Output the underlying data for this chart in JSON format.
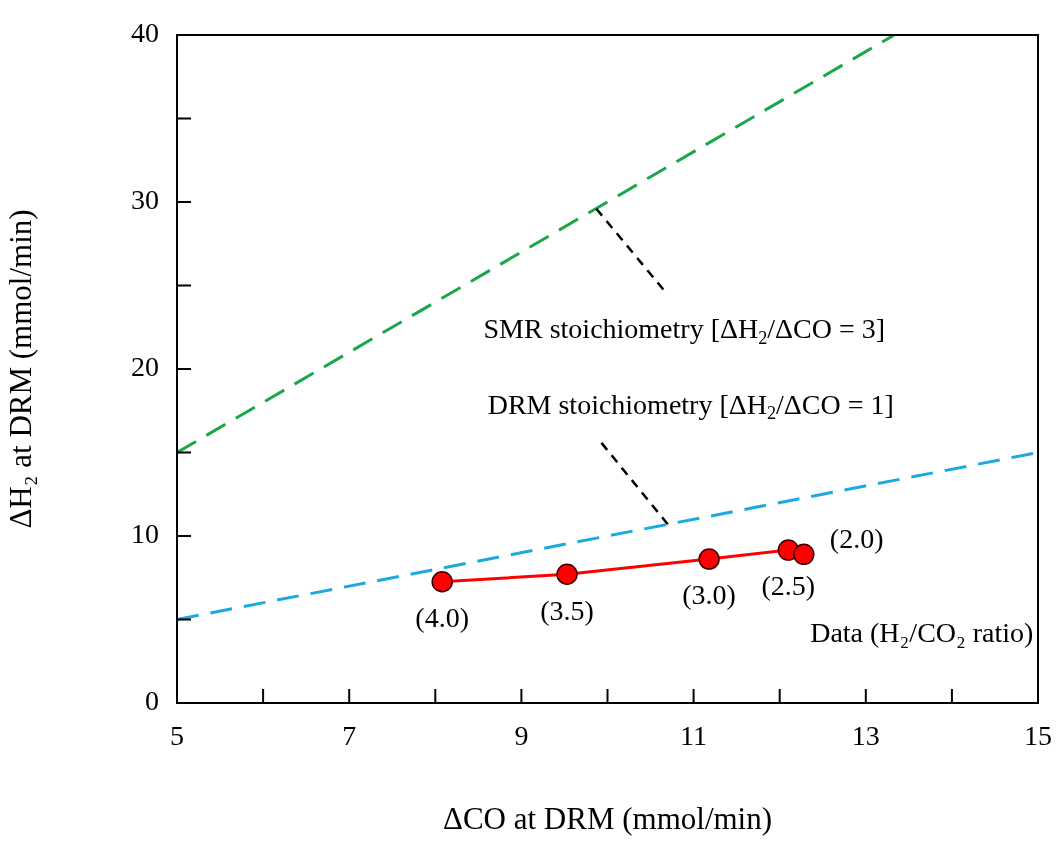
{
  "chart_data": {
    "type": "line",
    "xlabel": "ΔCO at DRM (mmol/min)",
    "ylabel": "ΔH₂ at DRM (mmol/min)",
    "xlim": [
      5,
      15
    ],
    "xticks": [
      5,
      {
        "value": 6,
        "label": null
      },
      7,
      {
        "value": 8,
        "label": null
      },
      9,
      {
        "value": 10,
        "label": null
      },
      11,
      {
        "value": 12,
        "label": null
      },
      13,
      {
        "value": 14,
        "label": null
      },
      15
    ],
    "ylim": [
      0,
      40
    ],
    "yticks": [
      0,
      {
        "value": 5,
        "label": null
      },
      10,
      {
        "value": 15,
        "label": null
      },
      20,
      {
        "value": 25,
        "label": null
      },
      30,
      {
        "value": 35,
        "label": null
      },
      40
    ],
    "grid": false,
    "legend": false,
    "series": [
      {
        "color": "#1aa64a",
        "x": [
          5,
          13.33
        ],
        "values": [
          15,
          40
        ],
        "line_style": "dashed",
        "marker": "none"
      },
      {
        "color": "#1ba9e0",
        "x": [
          5,
          15
        ],
        "values": [
          5,
          15
        ],
        "line_style": "dashed",
        "marker": "none"
      },
      {
        "name": "Data (H₂/CO₂ ratio)",
        "color": "#ff0000",
        "x": [
          8.08,
          9.53,
          11.18,
          12.1,
          12.28
        ],
        "values": [
          7.26,
          7.71,
          8.62,
          9.16,
          8.9
        ],
        "line_style": "solid",
        "marker": "circle"
      }
    ],
    "annotations": [
      {
        "text": "SMR stoichiometry [ΔH$_{2}$/ΔCO = 3]",
        "x": 9.87,
        "y": 29.6
      },
      {
        "text": "DRM stoichiometry [ΔH$_{2}$/ΔCO = 1]",
        "x": 10.7,
        "y": 10.7
      },
      {
        "text": "(4.0)",
        "x": 8.08,
        "y": 7.26
      },
      {
        "text": "(3.5)",
        "x": 9.53,
        "y": 7.71
      },
      {
        "text": "(3.0)",
        "x": 11.18,
        "y": 8.62
      },
      {
        "text": "(2.5)",
        "x": 12.1,
        "y": 9.16
      },
      {
        "text": "(2.0)",
        "x": 12.28,
        "y": 8.9
      }
    ]
  }
}
